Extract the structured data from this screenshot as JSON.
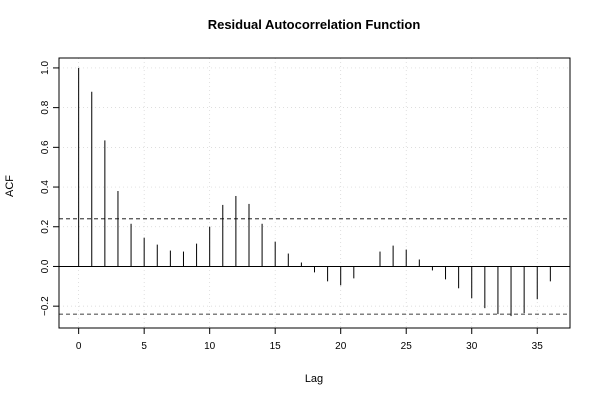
{
  "chart_data": {
    "type": "bar",
    "title": "Residual Autocorrelation Function",
    "xlabel": "Lag",
    "ylabel": "ACF",
    "xlim": [
      -1.5,
      37.5
    ],
    "ylim": [
      -0.31,
      1.05
    ],
    "x_ticks": [
      0,
      5,
      10,
      15,
      20,
      25,
      30,
      35
    ],
    "y_ticks": [
      -0.2,
      0.0,
      0.2,
      0.4,
      0.6,
      0.8,
      1.0
    ],
    "y_tick_labels": [
      "−0.2",
      "0.0",
      "0.2",
      "0.4",
      "0.6",
      "0.8",
      "1.0"
    ],
    "x_tick_labels": [
      "0",
      "5",
      "10",
      "15",
      "20",
      "25",
      "30",
      "35"
    ],
    "confidence_bound": 0.24,
    "grid": true,
    "lags": [
      0,
      1,
      2,
      3,
      4,
      5,
      6,
      7,
      8,
      9,
      10,
      11,
      12,
      13,
      14,
      15,
      16,
      17,
      18,
      19,
      20,
      21,
      22,
      23,
      24,
      25,
      26,
      27,
      28,
      29,
      30,
      31,
      32,
      33,
      34,
      35,
      36
    ],
    "values": [
      1.0,
      0.88,
      0.635,
      0.38,
      0.215,
      0.145,
      0.11,
      0.08,
      0.075,
      0.115,
      0.2,
      0.31,
      0.355,
      0.315,
      0.215,
      0.125,
      0.065,
      0.02,
      -0.03,
      -0.075,
      -0.095,
      -0.06,
      0.0,
      0.075,
      0.105,
      0.085,
      0.035,
      -0.02,
      -0.065,
      -0.11,
      -0.16,
      -0.21,
      -0.24,
      -0.25,
      -0.235,
      -0.165,
      -0.075
    ]
  }
}
